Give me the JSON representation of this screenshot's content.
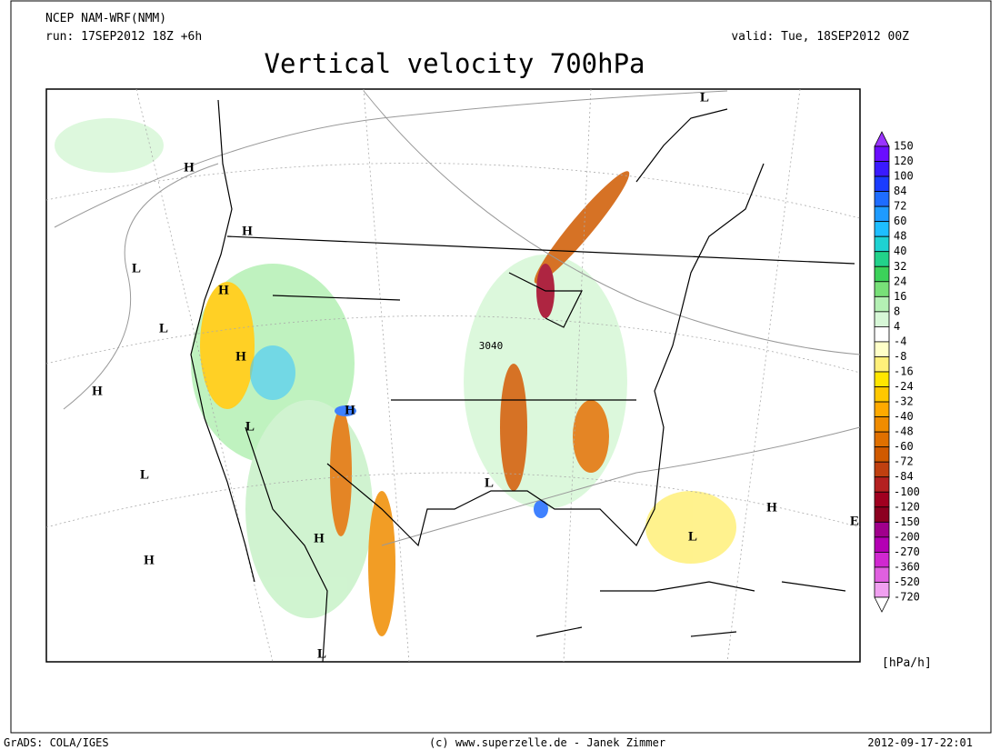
{
  "header": {
    "model": "NCEP NAM-WRF(NMM)",
    "run": "run: 17SEP2012 18Z +6h",
    "valid": "valid: Tue, 18SEP2012 00Z",
    "title": "Vertical velocity 700hPa"
  },
  "map": {
    "pressure_centers": [
      "H",
      "H",
      "L",
      "H",
      "L",
      "H",
      "H",
      "H",
      "L",
      "L",
      "L",
      "H",
      "L",
      "H",
      "H",
      "L",
      "L",
      "E"
    ],
    "contour_label": "3040"
  },
  "legend": {
    "unit": "[hPa/h]",
    "levels": [
      150,
      120,
      100,
      84,
      72,
      60,
      48,
      40,
      32,
      24,
      16,
      8,
      4,
      -4,
      -8,
      -16,
      -24,
      -32,
      -40,
      -48,
      -60,
      -72,
      -84,
      -100,
      -120,
      -150,
      -200,
      -270,
      -360,
      -520,
      -720
    ],
    "colors": [
      "#9a33ff",
      "#6a0dff",
      "#3a1aff",
      "#1a3cff",
      "#1e6cff",
      "#1e9bff",
      "#1ebeff",
      "#1ed2d2",
      "#22d28a",
      "#3cd25a",
      "#78e078",
      "#b4f0b4",
      "#d7f7d7",
      "#ffffff",
      "#ffffc8",
      "#fff07a",
      "#ffe600",
      "#ffc800",
      "#ffaa00",
      "#f08c00",
      "#e07000",
      "#d05a00",
      "#c04010",
      "#b42020",
      "#a00020",
      "#8c0020",
      "#a0008c",
      "#b400b4",
      "#d028d0",
      "#e060e0",
      "#f0a0f0",
      "#ffffff"
    ]
  },
  "footer": {
    "software": "GrADS: COLA/IGES",
    "credit": "(c) www.superzelle.de - Janek Zimmer",
    "timestamp": "2012-09-17-22:01"
  }
}
